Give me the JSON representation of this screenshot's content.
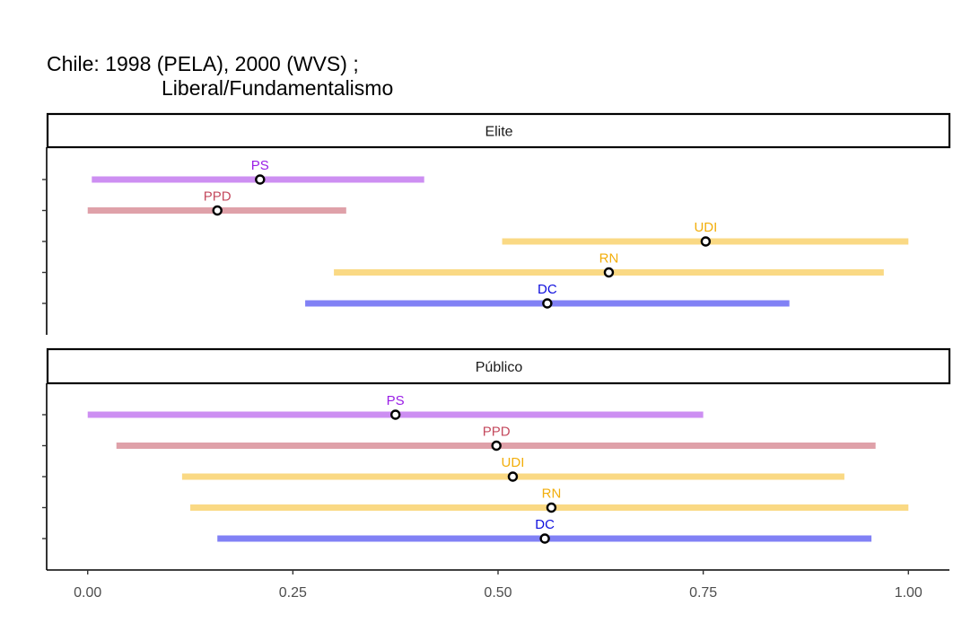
{
  "chart_data": {
    "type": "interval",
    "title": "Chile: 1998 (PELA), 2000 (WVS) ;",
    "subtitle": "Liberal/Fundamentalismo",
    "xlim": [
      -0.05,
      1.05
    ],
    "x_ticks": [
      0,
      0.25,
      0.5,
      0.75,
      1.0
    ],
    "x_tick_labels": [
      "0.00",
      "0.25",
      "0.50",
      "0.75",
      "1.00"
    ],
    "colors": {
      "PS": "#9a1ee6",
      "PPD": "#c44a5e",
      "UDI": "#f2ae0b",
      "RN": "#f2ae0b",
      "DC": "#0d0ddd"
    },
    "bar_colors": {
      "PS": "#cd8ff2",
      "PPD": "#dfa1a9",
      "UDI": "#fad984",
      "RN": "#fad984",
      "DC": "#8181f5"
    },
    "panels": [
      {
        "label": "Elite",
        "rows": [
          {
            "party": "PS",
            "low": 0.005,
            "mean": 0.21,
            "high": 0.41
          },
          {
            "party": "PPD",
            "low": 0.0,
            "mean": 0.158,
            "high": 0.315
          },
          {
            "party": "UDI",
            "low": 0.505,
            "mean": 0.753,
            "high": 1.0
          },
          {
            "party": "RN",
            "low": 0.3,
            "mean": 0.635,
            "high": 0.97
          },
          {
            "party": "DC",
            "low": 0.265,
            "mean": 0.56,
            "high": 0.855
          }
        ]
      },
      {
        "label": "Público",
        "rows": [
          {
            "party": "PS",
            "low": 0.0,
            "mean": 0.375,
            "high": 0.75
          },
          {
            "party": "PPD",
            "low": 0.035,
            "mean": 0.498,
            "high": 0.96
          },
          {
            "party": "UDI",
            "low": 0.115,
            "mean": 0.518,
            "high": 0.922
          },
          {
            "party": "RN",
            "low": 0.125,
            "mean": 0.565,
            "high": 1.0
          },
          {
            "party": "DC",
            "low": 0.158,
            "mean": 0.557,
            "high": 0.955
          }
        ]
      }
    ]
  }
}
